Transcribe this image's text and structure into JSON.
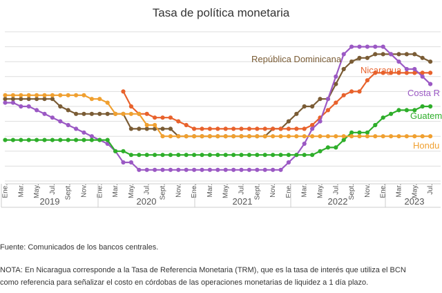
{
  "chart_data": {
    "type": "line",
    "title": "Tasa de política monetaria",
    "xlabel": "",
    "ylabel": "",
    "x": [
      "2019-01",
      "2019-02",
      "2019-03",
      "2019-04",
      "2019-05",
      "2019-06",
      "2019-07",
      "2019-08",
      "2019-09",
      "2019-10",
      "2019-11",
      "2019-12",
      "2020-01",
      "2020-02",
      "2020-03",
      "2020-04",
      "2020-05",
      "2020-06",
      "2020-07",
      "2020-08",
      "2020-09",
      "2020-10",
      "2020-11",
      "2020-12",
      "2021-01",
      "2021-02",
      "2021-03",
      "2021-04",
      "2021-05",
      "2021-06",
      "2021-07",
      "2021-08",
      "2021-09",
      "2021-10",
      "2021-11",
      "2021-12",
      "2022-01",
      "2022-02",
      "2022-03",
      "2022-04",
      "2022-05",
      "2022-06",
      "2022-07",
      "2022-08",
      "2022-09",
      "2022-10",
      "2022-11",
      "2022-12",
      "2023-01",
      "2023-02",
      "2023-03",
      "2023-04",
      "2023-05",
      "2023-06",
      "2023-07"
    ],
    "ylim": [
      0,
      10
    ],
    "grid": true,
    "series": [
      {
        "name": "República Dominicana",
        "color": "#7a5c35",
        "values": [
          5.5,
          5.5,
          5.5,
          5.5,
          5.5,
          5.5,
          5.5,
          5.0,
          4.75,
          4.5,
          4.5,
          4.5,
          4.5,
          4.5,
          4.5,
          4.5,
          3.5,
          3.5,
          3.5,
          3.5,
          3.5,
          3.5,
          3.0,
          3.0,
          3.0,
          3.0,
          3.0,
          3.0,
          3.0,
          3.0,
          3.0,
          3.0,
          3.0,
          3.0,
          3.5,
          3.5,
          4.0,
          4.5,
          5.0,
          5.0,
          5.5,
          5.5,
          6.5,
          7.5,
          8.0,
          8.25,
          8.25,
          8.5,
          8.5,
          8.5,
          8.5,
          8.5,
          8.5,
          8.25,
          8.0
        ]
      },
      {
        "name": "Nicaragua",
        "color": "#e8622c",
        "values": [
          null,
          null,
          null,
          null,
          null,
          null,
          null,
          null,
          null,
          null,
          null,
          null,
          null,
          null,
          null,
          6.0,
          5.0,
          4.5,
          4.5,
          4.25,
          4.25,
          4.25,
          4.0,
          3.75,
          3.5,
          3.5,
          3.5,
          3.5,
          3.5,
          3.5,
          3.5,
          3.5,
          3.5,
          3.5,
          3.5,
          3.5,
          3.5,
          3.5,
          3.5,
          3.75,
          4.25,
          4.75,
          5.25,
          5.75,
          6.0,
          6.0,
          6.75,
          7.25,
          7.25,
          7.25,
          7.25,
          7.25,
          7.25,
          7.25,
          7.25
        ]
      },
      {
        "name": "Costa Rica",
        "color": "#9b59c4",
        "values": [
          5.25,
          5.25,
          5.0,
          5.0,
          4.75,
          4.5,
          4.25,
          4.0,
          3.75,
          3.5,
          3.25,
          3.0,
          2.75,
          2.5,
          2.0,
          1.25,
          1.25,
          0.75,
          0.75,
          0.75,
          0.75,
          0.75,
          0.75,
          0.75,
          0.75,
          0.75,
          0.75,
          0.75,
          0.75,
          0.75,
          0.75,
          0.75,
          0.75,
          0.75,
          0.75,
          0.75,
          1.25,
          1.75,
          2.5,
          3.5,
          4.0,
          5.5,
          7.0,
          8.5,
          9.0,
          9.0,
          9.0,
          9.0,
          9.0,
          8.5,
          8.0,
          7.5,
          7.5,
          7.0,
          6.5
        ]
      },
      {
        "name": "Guatemala",
        "color": "#2eae2a",
        "values": [
          2.75,
          2.75,
          2.75,
          2.75,
          2.75,
          2.75,
          2.75,
          2.75,
          2.75,
          2.75,
          2.75,
          2.75,
          2.75,
          2.75,
          2.0,
          2.0,
          1.75,
          1.75,
          1.75,
          1.75,
          1.75,
          1.75,
          1.75,
          1.75,
          1.75,
          1.75,
          1.75,
          1.75,
          1.75,
          1.75,
          1.75,
          1.75,
          1.75,
          1.75,
          1.75,
          1.75,
          1.75,
          1.75,
          1.75,
          1.75,
          2.0,
          2.25,
          2.25,
          2.75,
          3.25,
          3.25,
          3.25,
          3.75,
          4.25,
          4.5,
          4.75,
          4.75,
          4.75,
          5.0,
          5.0
        ]
      },
      {
        "name": "Honduras",
        "color": "#f0a030",
        "values": [
          5.75,
          5.75,
          5.75,
          5.75,
          5.75,
          5.75,
          5.75,
          5.75,
          5.75,
          5.75,
          5.75,
          5.5,
          5.5,
          5.25,
          4.5,
          4.5,
          4.5,
          4.5,
          3.75,
          3.75,
          3.0,
          3.0,
          3.0,
          3.0,
          3.0,
          3.0,
          3.0,
          3.0,
          3.0,
          3.0,
          3.0,
          3.0,
          3.0,
          3.0,
          3.0,
          3.0,
          3.0,
          3.0,
          3.0,
          3.0,
          3.0,
          3.0,
          3.0,
          3.0,
          3.0,
          3.0,
          3.0,
          3.0,
          3.0,
          3.0,
          3.0,
          3.0,
          3.0,
          3.0,
          3.0
        ]
      }
    ],
    "legend_labels": [
      {
        "text": "República Dominicana",
        "color": "#7a5c35"
      },
      {
        "text": "Nicaragua",
        "color": "#e8622c"
      },
      {
        "text": "Costa R",
        "color": "#9b59c4"
      },
      {
        "text": "Guatem",
        "color": "#2eae2a"
      },
      {
        "text": "Hondu",
        "color": "#f0a030"
      }
    ],
    "month_labels": [
      "Ene.",
      "Mar.",
      "May.",
      "Jul.",
      "Sept.",
      "Nov.",
      "Ene.",
      "Mar.",
      "May.",
      "Jul.",
      "Sept.",
      "Nov.",
      "Ene.",
      "Mar.",
      "May.",
      "Jul.",
      "Sept.",
      "Nov.",
      "Ene.",
      "Mar.",
      "May.",
      "Jul.",
      "Sept.",
      "Nov.",
      "Ene.",
      "Mar.",
      "May.",
      "Jul."
    ],
    "years": [
      "2019",
      "2020",
      "2021",
      "2022",
      "2023"
    ]
  },
  "footer": {
    "source": "Fuente: Comunicados de los bancos centrales.",
    "note_line1": "NOTA: En Nicaragua corresponde a la Tasa de Referencia Monetaria (TRM), que es la tasa de interés que utiliza el BCN",
    "note_line2": "como referencia para señalizar el costo en córdobas de las operaciones monetarias de liquidez a 1 día plazo."
  }
}
